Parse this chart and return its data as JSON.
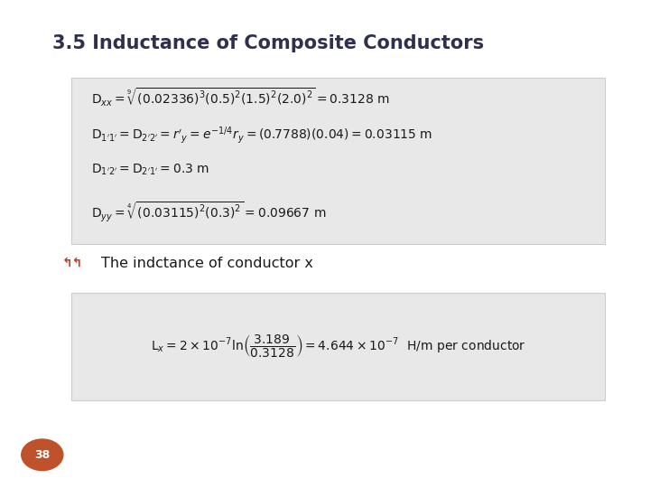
{
  "title": "3.5 Inductance of Composite Conductors",
  "title_fontsize": 15,
  "title_color": "#2F2F4F",
  "bg_color": "#FFFFFF",
  "slide_bg": "#FFFFFF",
  "box1_bg": "#E8E8E8",
  "box2_bg": "#E8E8E8",
  "bullet_color": "#C0392B",
  "bullet_text": "The indctance of conductor x",
  "bullet_fontsize": 11.5,
  "page_number": "38",
  "page_circle_color": "#C0522B",
  "page_text_color": "#FFFFFF",
  "eq1": "$\\mathrm{D}_{xx} = \\sqrt[9]{(0.02336)^3(0.5)^2(1.5)^2(2.0)^2} = 0.3128\\ \\mathrm{m}$",
  "eq2": "$\\mathrm{D}_{1'1'} = \\mathrm{D}_{2'2'} = r'_y = e^{-1/4}r_y = (0.7788)(0.04) = 0.03115\\ \\mathrm{m}$",
  "eq3": "$\\mathrm{D}_{1'2'} = \\mathrm{D}_{2'1'} = 0.3\\ \\mathrm{m}$",
  "eq4": "$\\mathrm{D}_{yy} = \\sqrt[4]{(0.03115)^2(0.3)^2} = 0.09667\\ \\mathrm{m}$",
  "eq5": "$\\mathrm{L}_x = 2 \\times 10^{-7} \\ln\\!\\left(\\dfrac{3.189}{0.3128}\\right) = 4.644 \\times 10^{-7}\\ \\ \\mathrm{H/m\\ per\\ conductor}$",
  "eq_fontsize": 10,
  "eq5_fontsize": 10
}
